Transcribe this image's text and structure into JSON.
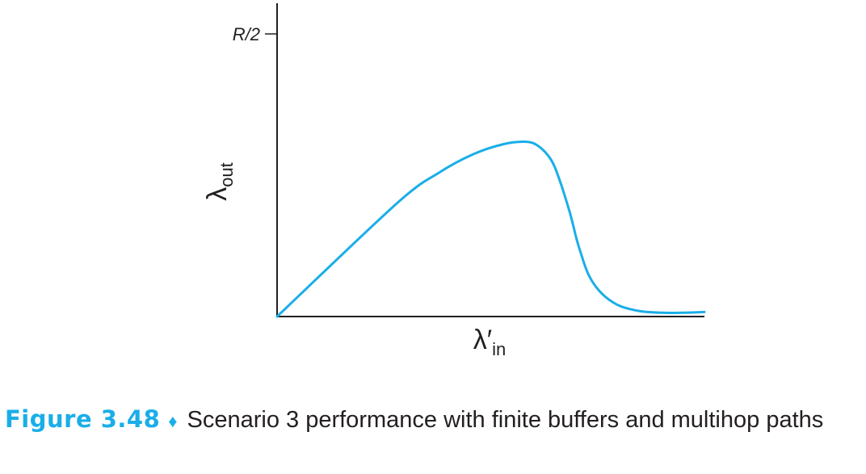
{
  "chart_data": {
    "type": "line",
    "title": "",
    "xlabel": {
      "symbol": "λ′",
      "subscript": "in"
    },
    "ylabel": {
      "symbol": "λ",
      "subscript": "out"
    },
    "y_ticks": [
      {
        "label": "R/2",
        "value": 1.0
      }
    ],
    "xlim": [
      0,
      1
    ],
    "ylim": [
      0,
      1
    ],
    "grid": false,
    "series": [
      {
        "color": "#1aaee8",
        "x": [
          0.0,
          0.28,
          0.38,
          0.46,
          0.53,
          0.58,
          0.61,
          0.64,
          0.66,
          0.685,
          0.7,
          0.71,
          0.73,
          0.76,
          0.8,
          0.85,
          0.9,
          0.95,
          1.0
        ],
        "y": [
          0.0,
          0.4,
          0.51,
          0.575,
          0.61,
          0.6185,
          0.6045,
          0.557,
          0.488,
          0.368,
          0.279,
          0.228,
          0.144,
          0.081,
          0.039,
          0.019,
          0.0135,
          0.0135,
          0.016
        ]
      }
    ]
  },
  "caption": {
    "figure_number": "Figure 3.48",
    "separator": "♦",
    "text": "Scenario 3 performance with finite buffers and multihop paths"
  }
}
